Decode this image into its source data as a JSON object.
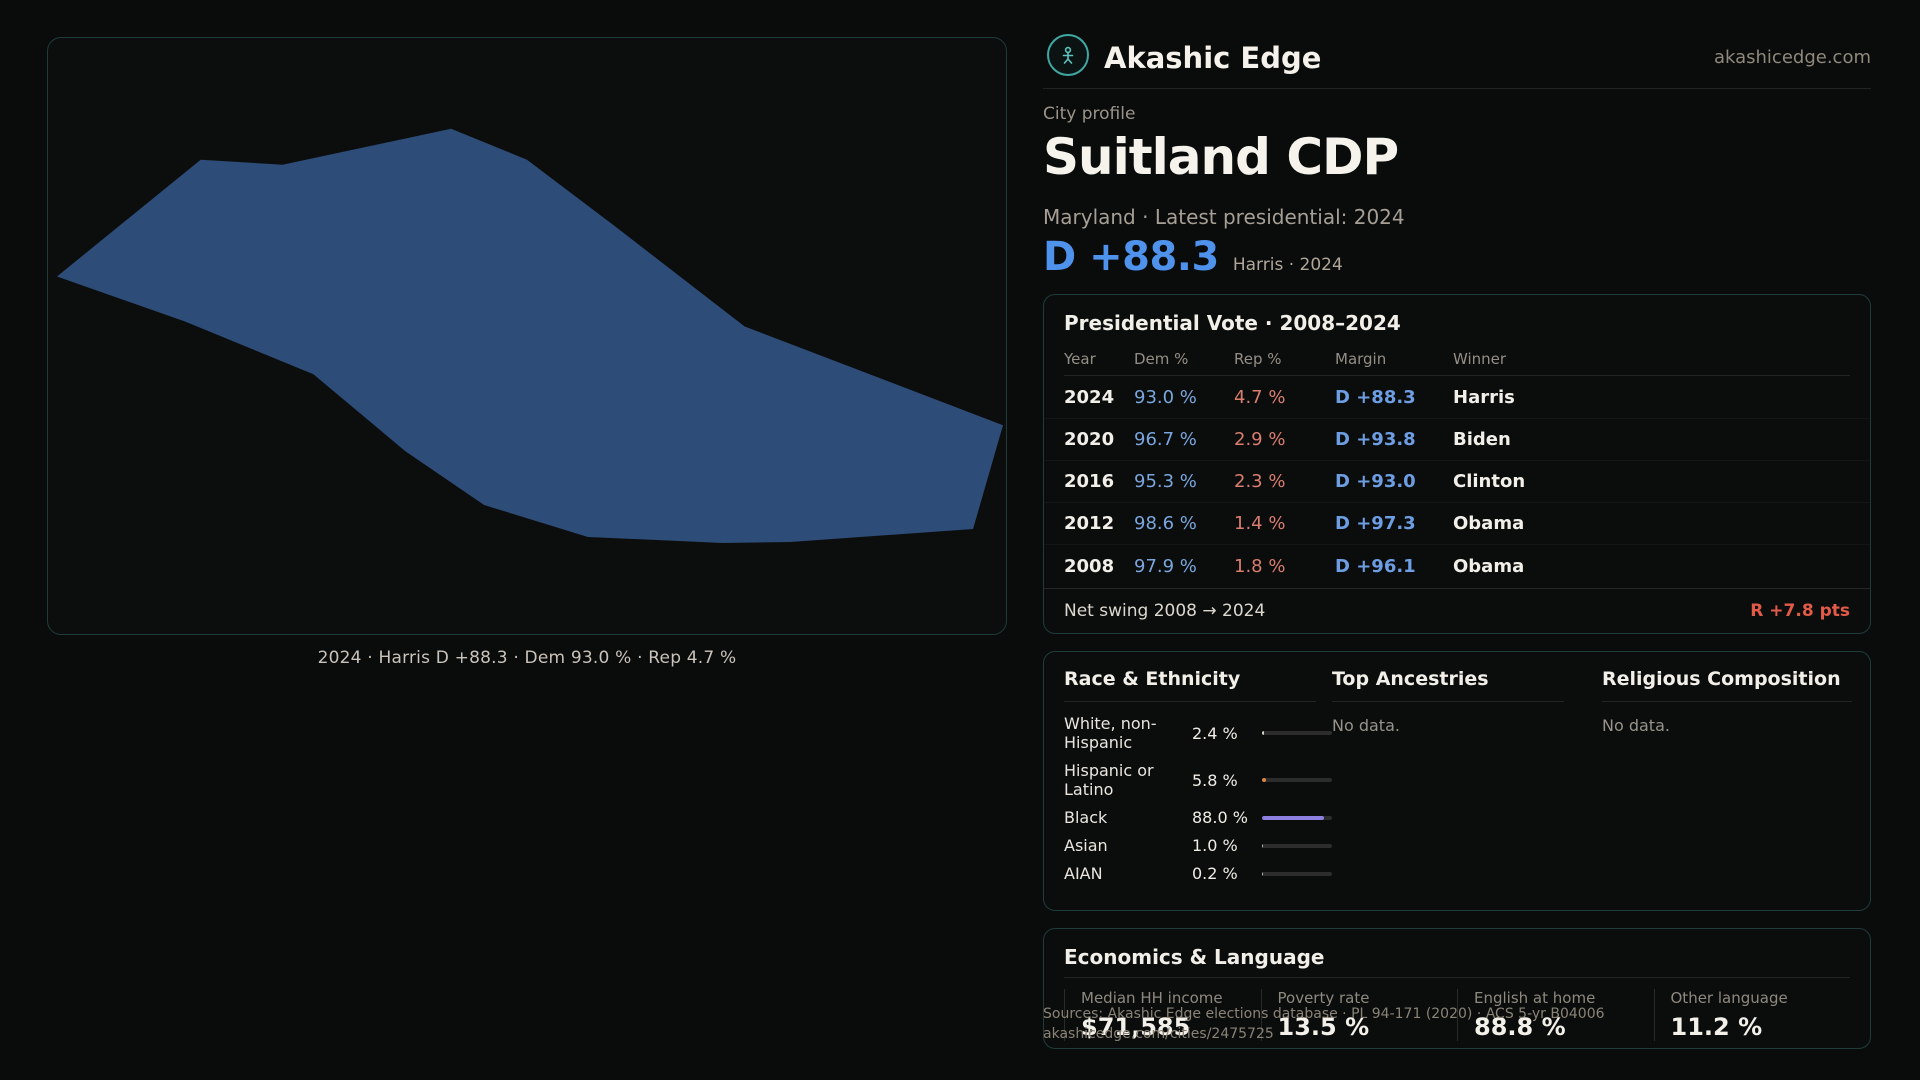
{
  "brand": {
    "name": "Akashic Edge",
    "domain": "akashicedge.com"
  },
  "profile": {
    "eyebrow": "City profile",
    "title": "Suitland CDP",
    "subtitle": "Maryland · Latest presidential: 2024",
    "margin_big": "D +88.3",
    "margin_caption": "Harris · 2024"
  },
  "map": {
    "caption": "2024 · Harris D +88.3 · Dem 93.0 % · Rep 4.7 %",
    "fill": "#2e4c78"
  },
  "vote": {
    "title": "Presidential Vote · 2008–2024",
    "columns": [
      "Year",
      "Dem %",
      "Rep %",
      "Margin",
      "Winner"
    ],
    "rows": [
      {
        "year": "2024",
        "dem": "93.0 %",
        "rep": "4.7 %",
        "margin": "D +88.3",
        "winner": "Harris"
      },
      {
        "year": "2020",
        "dem": "96.7 %",
        "rep": "2.9 %",
        "margin": "D +93.8",
        "winner": "Biden"
      },
      {
        "year": "2016",
        "dem": "95.3 %",
        "rep": "2.3 %",
        "margin": "D +93.0",
        "winner": "Clinton"
      },
      {
        "year": "2012",
        "dem": "98.6 %",
        "rep": "1.4 %",
        "margin": "D +97.3",
        "winner": "Obama"
      },
      {
        "year": "2008",
        "dem": "97.9 %",
        "rep": "1.8 %",
        "margin": "D +96.1",
        "winner": "Obama"
      }
    ],
    "net_swing_label": "Net swing 2008 → 2024",
    "net_swing_value": "R +7.8 pts"
  },
  "race": {
    "title": "Race & Ethnicity",
    "rows": [
      {
        "label": "White, non-Hispanic",
        "value": "2.4 %",
        "pct": 2.4,
        "color": "#d8d4cc"
      },
      {
        "label": "Hispanic or Latino",
        "value": "5.8 %",
        "pct": 5.8,
        "color": "#e0883c"
      },
      {
        "label": "Black",
        "value": "88.0 %",
        "pct": 88.0,
        "color": "#8d80e0"
      },
      {
        "label": "Asian",
        "value": "1.0 %",
        "pct": 1.0,
        "color": "#bdb9b1"
      },
      {
        "label": "AIAN",
        "value": "0.2 %",
        "pct": 0.2,
        "color": "#bdb9b1"
      }
    ]
  },
  "ancestries": {
    "title": "Top Ancestries",
    "empty": "No data."
  },
  "religion": {
    "title": "Religious Composition",
    "empty": "No data."
  },
  "economics": {
    "title": "Economics & Language",
    "stats": [
      {
        "label": "Median HH income",
        "value": "$71,585"
      },
      {
        "label": "Poverty rate",
        "value": "13.5 %"
      },
      {
        "label": "English at home",
        "value": "88.8 %"
      },
      {
        "label": "Other language",
        "value": "11.2 %"
      }
    ]
  },
  "footer": {
    "line1": "Sources: Akashic Edge elections database · PL 94-171 (2020) · ACS 5-yr B04006",
    "line2": "akashicedge.com/cities/2475725"
  },
  "colors": {
    "accent_blue": "#4e92ec",
    "accent_red": "#e25a48",
    "map_fill": "#2e4c78"
  }
}
